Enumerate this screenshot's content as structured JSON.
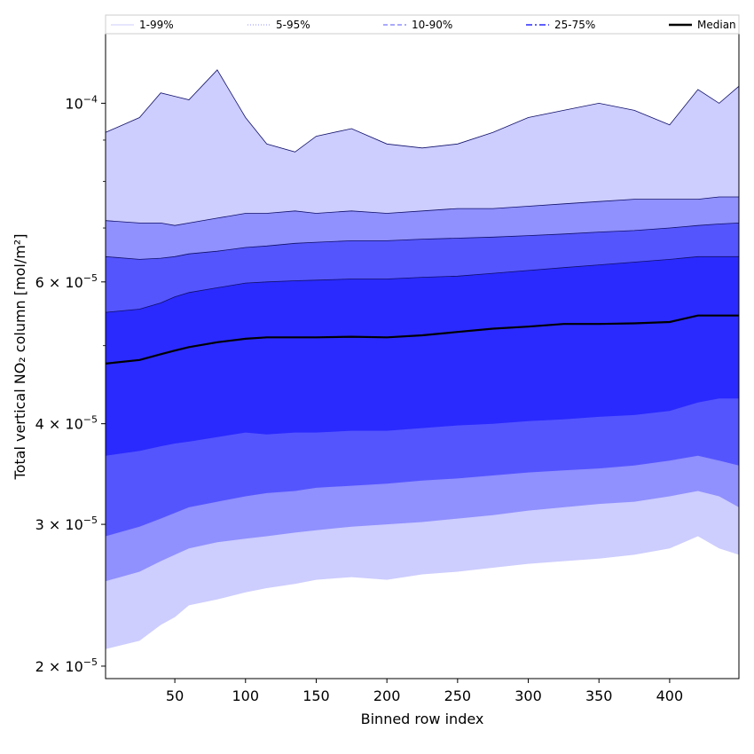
{
  "chart_data": {
    "type": "area",
    "title": "",
    "xlabel": "Binned row index",
    "ylabel": "Total vertical NO₂ column [mol/m²]",
    "yscale": "log",
    "xlim": [
      1,
      449
    ],
    "ylim": [
      1.93e-05,
      0.000122
    ],
    "x_ticks": [
      50,
      100,
      150,
      200,
      250,
      300,
      350,
      400
    ],
    "y_ticks": [
      {
        "value": 2e-05,
        "mantissa": "2",
        "exponent": "−5",
        "prefix": "2 × 10"
      },
      {
        "value": 3e-05,
        "mantissa": "3",
        "exponent": "−5",
        "prefix": "3 × 10"
      },
      {
        "value": 4e-05,
        "mantissa": "4",
        "exponent": "−5",
        "prefix": "4 × 10"
      },
      {
        "value": 6e-05,
        "mantissa": "6",
        "exponent": "−5",
        "prefix": "6 × 10"
      },
      {
        "value": 0.0001,
        "mantissa": "",
        "exponent": "−4",
        "prefix": "10"
      }
    ],
    "grid": false,
    "legend_position": "top",
    "x": [
      1,
      25,
      40,
      50,
      60,
      80,
      100,
      115,
      135,
      150,
      175,
      200,
      225,
      250,
      275,
      300,
      325,
      350,
      375,
      400,
      420,
      435,
      449
    ],
    "series": [
      {
        "name": "1-99%",
        "color": "#cdcdfe",
        "band": "outer",
        "upper": [
          9.2e-05,
          9.6e-05,
          0.000103,
          0.000102,
          0.000101,
          0.00011,
          9.6e-05,
          8.9e-05,
          8.7e-05,
          9.1e-05,
          9.3e-05,
          8.9e-05,
          8.8e-05,
          8.9e-05,
          9.2e-05,
          9.6e-05,
          9.8e-05,
          0.0001,
          9.8e-05,
          9.4e-05,
          0.000104,
          0.0001,
          0.000105
        ],
        "lower": [
          2.1e-05,
          2.15e-05,
          2.25e-05,
          2.3e-05,
          2.38e-05,
          2.42e-05,
          2.47e-05,
          2.5e-05,
          2.53e-05,
          2.56e-05,
          2.58e-05,
          2.56e-05,
          2.6e-05,
          2.62e-05,
          2.65e-05,
          2.68e-05,
          2.7e-05,
          2.72e-05,
          2.75e-05,
          2.8e-05,
          2.9e-05,
          2.8e-05,
          2.75e-05
        ]
      },
      {
        "name": "5-95%",
        "color": "#9090fe",
        "band": "mid",
        "upper": [
          7.15e-05,
          7.1e-05,
          7.1e-05,
          7.05e-05,
          7.1e-05,
          7.2e-05,
          7.3e-05,
          7.3e-05,
          7.35e-05,
          7.3e-05,
          7.35e-05,
          7.3e-05,
          7.35e-05,
          7.4e-05,
          7.4e-05,
          7.45e-05,
          7.5e-05,
          7.55e-05,
          7.6e-05,
          7.6e-05,
          7.6e-05,
          7.65e-05,
          7.65e-05
        ],
        "lower": [
          2.55e-05,
          2.62e-05,
          2.7e-05,
          2.75e-05,
          2.8e-05,
          2.85e-05,
          2.88e-05,
          2.9e-05,
          2.93e-05,
          2.95e-05,
          2.98e-05,
          3e-05,
          3.02e-05,
          3.05e-05,
          3.08e-05,
          3.12e-05,
          3.15e-05,
          3.18e-05,
          3.2e-05,
          3.25e-05,
          3.3e-05,
          3.25e-05,
          3.15e-05
        ]
      },
      {
        "name": "10-90%",
        "color": "#5555fe",
        "band": "inner",
        "upper": [
          6.45e-05,
          6.4e-05,
          6.42e-05,
          6.45e-05,
          6.5e-05,
          6.55e-05,
          6.62e-05,
          6.65e-05,
          6.7e-05,
          6.72e-05,
          6.75e-05,
          6.75e-05,
          6.78e-05,
          6.8e-05,
          6.82e-05,
          6.85e-05,
          6.88e-05,
          6.92e-05,
          6.95e-05,
          7e-05,
          7.05e-05,
          7.08e-05,
          7.1e-05
        ],
        "lower": [
          2.9e-05,
          2.98e-05,
          3.05e-05,
          3.1e-05,
          3.15e-05,
          3.2e-05,
          3.25e-05,
          3.28e-05,
          3.3e-05,
          3.33e-05,
          3.35e-05,
          3.37e-05,
          3.4e-05,
          3.42e-05,
          3.45e-05,
          3.48e-05,
          3.5e-05,
          3.52e-05,
          3.55e-05,
          3.6e-05,
          3.65e-05,
          3.6e-05,
          3.55e-05
        ]
      },
      {
        "name": "25-75%",
        "color": "#2a2afe",
        "band": "core",
        "upper": [
          5.5e-05,
          5.55e-05,
          5.65e-05,
          5.75e-05,
          5.82e-05,
          5.9e-05,
          5.98e-05,
          6e-05,
          6.02e-05,
          6.03e-05,
          6.05e-05,
          6.05e-05,
          6.08e-05,
          6.1e-05,
          6.15e-05,
          6.2e-05,
          6.25e-05,
          6.3e-05,
          6.35e-05,
          6.4e-05,
          6.45e-05,
          6.45e-05,
          6.45e-05
        ],
        "lower": [
          3.65e-05,
          3.7e-05,
          3.75e-05,
          3.78e-05,
          3.8e-05,
          3.85e-05,
          3.9e-05,
          3.88e-05,
          3.9e-05,
          3.9e-05,
          3.92e-05,
          3.92e-05,
          3.95e-05,
          3.98e-05,
          4e-05,
          4.03e-05,
          4.05e-05,
          4.08e-05,
          4.1e-05,
          4.15e-05,
          4.25e-05,
          4.3e-05,
          4.3e-05
        ]
      },
      {
        "name": "Median",
        "color": "#000000",
        "band": "line",
        "values": [
          4.75e-05,
          4.8e-05,
          4.88e-05,
          4.93e-05,
          4.98e-05,
          5.05e-05,
          5.1e-05,
          5.12e-05,
          5.12e-05,
          5.12e-05,
          5.13e-05,
          5.12e-05,
          5.15e-05,
          5.2e-05,
          5.25e-05,
          5.28e-05,
          5.32e-05,
          5.32e-05,
          5.33e-05,
          5.35e-05,
          5.45e-05,
          5.45e-05,
          5.45e-05
        ]
      }
    ],
    "legend": [
      {
        "label": "1-99%",
        "color": "#cdcdfe",
        "style": "solid",
        "width": 1
      },
      {
        "label": "5-95%",
        "color": "#9090fe",
        "style": "dotted",
        "width": 1
      },
      {
        "label": "10-90%",
        "color": "#5555fe",
        "style": "dashed",
        "width": 1
      },
      {
        "label": "25-75%",
        "color": "#2a2afe",
        "style": "dashdot",
        "width": 1.5
      },
      {
        "label": "Median",
        "color": "#000000",
        "style": "solid",
        "width": 2.5
      }
    ]
  }
}
